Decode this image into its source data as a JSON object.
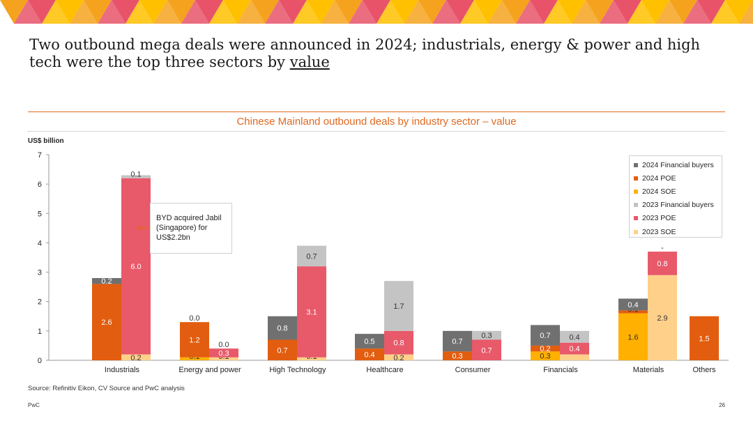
{
  "headline": {
    "main": "Two outbound mega deals were announced in 2024; industrials, energy & power and high tech were the top three sectors by ",
    "underlined": "value"
  },
  "source": "Source: Refinitiv Eikon, CV Source and PwC analysis",
  "footer": {
    "brand": "PwC",
    "page": "26"
  },
  "annotation": {
    "lines": [
      "BYD acquired Jabil",
      "(Singapore) for",
      "US$2.2bn"
    ]
  },
  "colors": {
    "accent": "#e0681f",
    "banner": [
      "#f5a31e",
      "#e8536a",
      "#ffc000"
    ],
    "soe2024": "#ffb000",
    "poe2024": "#e25d0f",
    "fin2024": "#707070",
    "soe2023": "#ffd08a",
    "poe2023": "#e8596a",
    "fin2023": "#c4c4c4"
  },
  "chart_data": {
    "type": "bar",
    "stacked": true,
    "title": "Chinese Mainland outbound deals by industry sector – value",
    "ylabel": "US$ billion",
    "xlabel": "",
    "ylim": [
      0,
      7
    ],
    "yticks": [
      "0",
      "1",
      "2",
      "3",
      "4",
      "5",
      "6",
      "7"
    ],
    "grid": false,
    "legend_position": "top-right",
    "legend": [
      "2024 Financial buyers",
      "2024 POE",
      "2024 SOE",
      "2023 Financial buyers",
      "2023 POE",
      "2023 SOE"
    ],
    "categories": [
      "Industrials",
      "Energy and power",
      "High Technology",
      "Healthcare",
      "Consumer",
      "Financials",
      "Materials",
      "Others"
    ],
    "groups": [
      {
        "year": "2023",
        "segments": [
          {
            "series": "2023 SOE",
            "values": [
              0.2,
              0.1,
              0.1,
              0.2,
              0.0,
              0.2,
              2.9,
              null
            ],
            "labels": [
              "0.2",
              "0.1",
              "0.1",
              "0.2",
              "",
              "",
              "2.9",
              ""
            ]
          },
          {
            "series": "2023 POE",
            "values": [
              6.0,
              0.3,
              3.1,
              0.8,
              0.7,
              0.4,
              0.8,
              null
            ],
            "labels": [
              "6.0",
              "0.3",
              "3.1",
              "0.8",
              "0.7",
              "0.4",
              "0.8",
              ""
            ]
          },
          {
            "series": "2023 Financial buyers",
            "values": [
              0.1,
              0.0,
              0.7,
              1.7,
              0.3,
              0.4,
              0.0,
              null
            ],
            "labels": [
              "0.1",
              "0.0",
              "0.7",
              "1.7",
              "0.3",
              "0.4",
              "-",
              ""
            ]
          }
        ]
      },
      {
        "year": "2024",
        "segments": [
          {
            "series": "2024 SOE",
            "values": [
              0.0,
              0.1,
              0.0,
              0.0,
              0.0,
              0.3,
              1.6,
              0.0
            ],
            "labels": [
              "0.0",
              "0.1",
              "-",
              "-",
              "0.0",
              "0.3",
              "1.6",
              ""
            ]
          },
          {
            "series": "2024 POE",
            "values": [
              2.6,
              1.2,
              0.7,
              0.4,
              0.3,
              0.2,
              0.1,
              1.5
            ],
            "labels": [
              "2.6",
              "1.2",
              "0.7",
              "0.4",
              "0.3",
              "0.2",
              "0.1",
              "1.5"
            ]
          },
          {
            "series": "2024 Financial buyers",
            "values": [
              0.2,
              0.0,
              0.8,
              0.5,
              0.7,
              0.7,
              0.4,
              0.0
            ],
            "labels": [
              "0.2",
              "0.0",
              "0.8",
              "0.5",
              "0.7",
              "0.7",
              "0.4",
              ""
            ]
          }
        ]
      }
    ]
  }
}
